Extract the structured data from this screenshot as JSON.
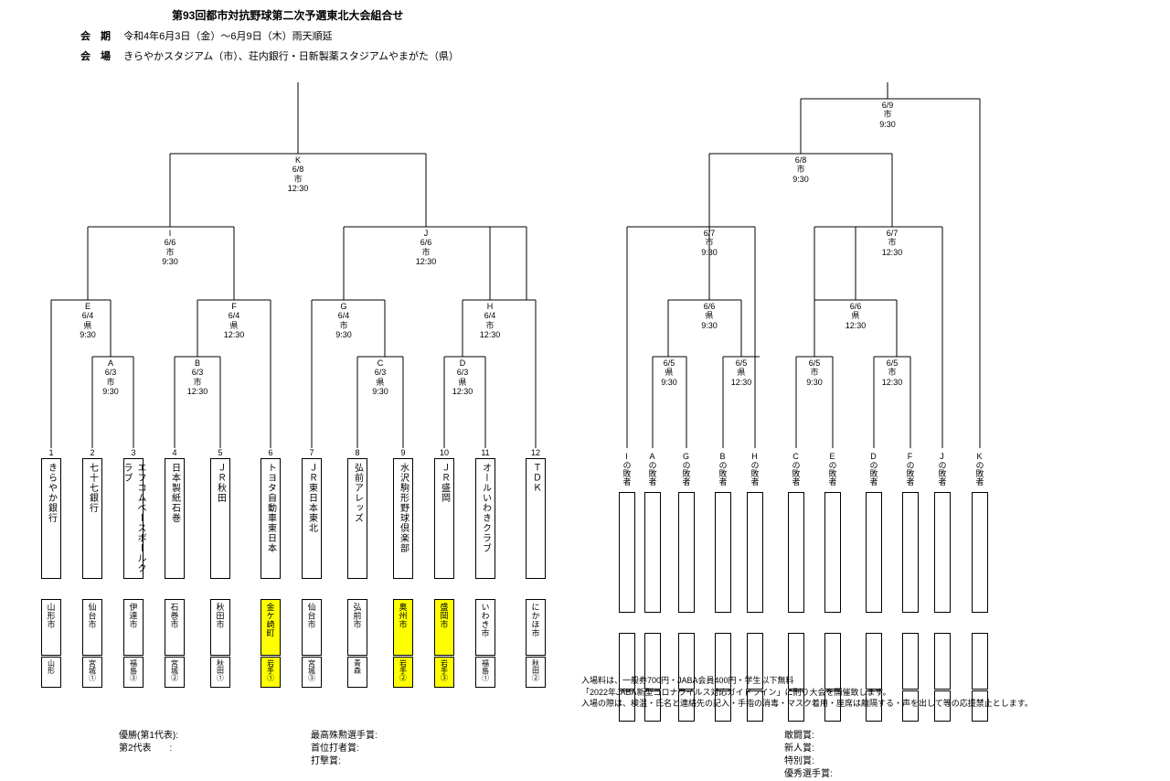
{
  "title": "第93回都市対抗野球第二次予選東北大会組合せ",
  "info": {
    "period_label": "会　期",
    "period_value": "令和4年6月3日（金）～6月9日（木）雨天順延",
    "venue_label": "会　場",
    "venue_value": "きらやかスタジアム（市）、荘内銀行・日新製薬スタジアムやまがた（県）"
  },
  "main_bracket": {
    "teams": [
      {
        "num": "1",
        "name": "きらやか銀行",
        "city": "山形市",
        "pref": "山形",
        "hl": false
      },
      {
        "num": "2",
        "name": "七十七銀行",
        "city": "仙台市",
        "pref": "宮城①",
        "hl": false
      },
      {
        "num": "3",
        "name": "エフコムベースボールクラブ",
        "city": "伊達市",
        "pref": "福島③",
        "hl": false
      },
      {
        "num": "4",
        "name": "日本製紙石巻",
        "city": "石巻市",
        "pref": "宮城②",
        "hl": false
      },
      {
        "num": "5",
        "name": "ＪＲ秋田",
        "city": "秋田市",
        "pref": "秋田①",
        "hl": false
      },
      {
        "num": "6",
        "name": "トヨタ自動車東日本",
        "city": "金ケ崎町",
        "pref": "岩手①",
        "hl": true
      },
      {
        "num": "7",
        "name": "ＪＲ東日本東北",
        "city": "仙台市",
        "pref": "宮城③",
        "hl": false
      },
      {
        "num": "8",
        "name": "弘前アレッズ",
        "city": "弘前市",
        "pref": "青森",
        "hl": false
      },
      {
        "num": "9",
        "name": "水沢駒形野球倶楽部",
        "city": "奥州市",
        "pref": "岩手②",
        "hl": true
      },
      {
        "num": "10",
        "name": "ＪＲ盛岡",
        "city": "盛岡市",
        "pref": "岩手③",
        "hl": true
      },
      {
        "num": "11",
        "name": "オールいわきクラブ",
        "city": "いわき市",
        "pref": "福島①",
        "hl": false
      },
      {
        "num": "12",
        "name": "ＴＤＫ",
        "city": "にかほ市",
        "pref": "秋田②",
        "hl": false
      }
    ],
    "nodes": {
      "K": {
        "id": "K",
        "date": "6/8",
        "venue": "市",
        "time": "12:30"
      },
      "I": {
        "id": "I",
        "date": "6/6",
        "venue": "市",
        "time": "9:30"
      },
      "J": {
        "id": "J",
        "date": "6/6",
        "venue": "市",
        "time": "12:30"
      },
      "E": {
        "id": "E",
        "date": "6/4",
        "venue": "県",
        "time": "9:30"
      },
      "F": {
        "id": "F",
        "date": "6/4",
        "venue": "県",
        "time": "12:30"
      },
      "G": {
        "id": "G",
        "date": "6/4",
        "venue": "市",
        "time": "9:30"
      },
      "H": {
        "id": "H",
        "date": "6/4",
        "venue": "市",
        "time": "12:30"
      },
      "A": {
        "id": "A",
        "date": "6/3",
        "venue": "市",
        "time": "9:30"
      },
      "B": {
        "id": "B",
        "date": "6/3",
        "venue": "市",
        "time": "12:30"
      },
      "C": {
        "id": "C",
        "date": "6/3",
        "venue": "県",
        "time": "9:30"
      },
      "D": {
        "id": "D",
        "date": "6/3",
        "venue": "県",
        "time": "12:30"
      }
    }
  },
  "consolation": {
    "losers": [
      "I",
      "A",
      "G",
      "B",
      "H",
      "C",
      "E",
      "D",
      "F",
      "J",
      "K"
    ],
    "losers_suffix": "の敗者",
    "nodes": {
      "final": {
        "date": "6/9",
        "venue": "市",
        "time": "9:30"
      },
      "sf": {
        "date": "6/8",
        "venue": "市",
        "time": "9:30"
      },
      "q1": {
        "date": "6/7",
        "venue": "市",
        "time": "9:30"
      },
      "q2": {
        "date": "6/7",
        "venue": "市",
        "time": "12:30"
      },
      "r1": {
        "date": "6/6",
        "venue": "県",
        "time": "9:30"
      },
      "r2": {
        "date": "6/6",
        "venue": "県",
        "time": "12:30"
      },
      "p1": {
        "date": "6/5",
        "venue": "県",
        "time": "9:30"
      },
      "p2": {
        "date": "6/5",
        "venue": "県",
        "time": "12:30"
      },
      "p3": {
        "date": "6/5",
        "venue": "市",
        "time": "9:30"
      },
      "p4": {
        "date": "6/5",
        "venue": "市",
        "time": "12:30"
      }
    }
  },
  "notes": {
    "l1": "入場料は、一般券700円・JABA会員400円・学生以下無料",
    "l2": "「2022年JABA新型コロナウイルス対応ガイドライン」に則り大会を開催致します。",
    "l3": "入場の際は、検温・氏名と連絡先の記入・手指の消毒・マスク着用・座席は離隔する・声を出して等の応援禁止とします。"
  },
  "footer": {
    "left1": "優勝(第1代表):",
    "left2": "第2代表　　:",
    "mid1": "最高殊勲選手賞:",
    "mid2": "首位打者賞:",
    "mid3": "打撃賞:",
    "right1": "敢闘賞:",
    "right2": "新人賞:",
    "right3": "特別賞:",
    "right4": "優秀選手賞:"
  },
  "style": {
    "line_color": "#000000",
    "highlight_color": "#ffff00",
    "bg_color": "#ffffff"
  }
}
